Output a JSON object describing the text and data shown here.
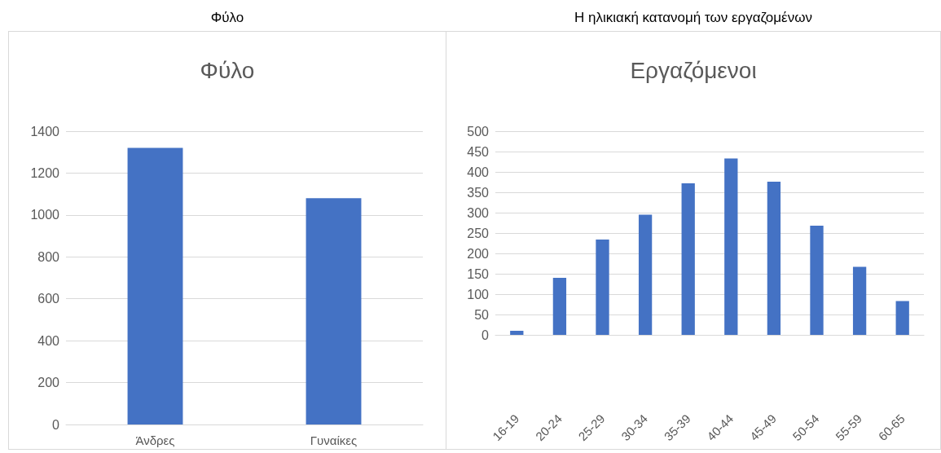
{
  "chart_data": [
    {
      "type": "bar",
      "title": "Φύλο",
      "annotations": [
        "Φύλο"
      ],
      "categories": [
        "Άνδρες",
        "Γυναίκες"
      ],
      "values": [
        1320,
        1080
      ],
      "color": "#4472c4",
      "ylim": [
        0,
        1400
      ],
      "yticks": [
        0,
        200,
        400,
        600,
        800,
        1000,
        1200,
        1400
      ],
      "grid": "y"
    },
    {
      "type": "bar",
      "title": "Εργαζόμενοι",
      "annotations": [
        "Η ηλικιακή κατανομή των εργαζομένων"
      ],
      "categories": [
        "16-19",
        "20-24",
        "25-29",
        "30-34",
        "35-39",
        "40-44",
        "45-49",
        "50-54",
        "55-59",
        "60-65"
      ],
      "values": [
        10,
        140,
        234,
        295,
        372,
        433,
        376,
        268,
        167,
        83
      ],
      "color": "#4472c4",
      "ylim": [
        0,
        500
      ],
      "yticks": [
        0,
        50,
        100,
        150,
        200,
        250,
        300,
        350,
        400,
        450,
        500
      ],
      "grid": "y"
    }
  ]
}
